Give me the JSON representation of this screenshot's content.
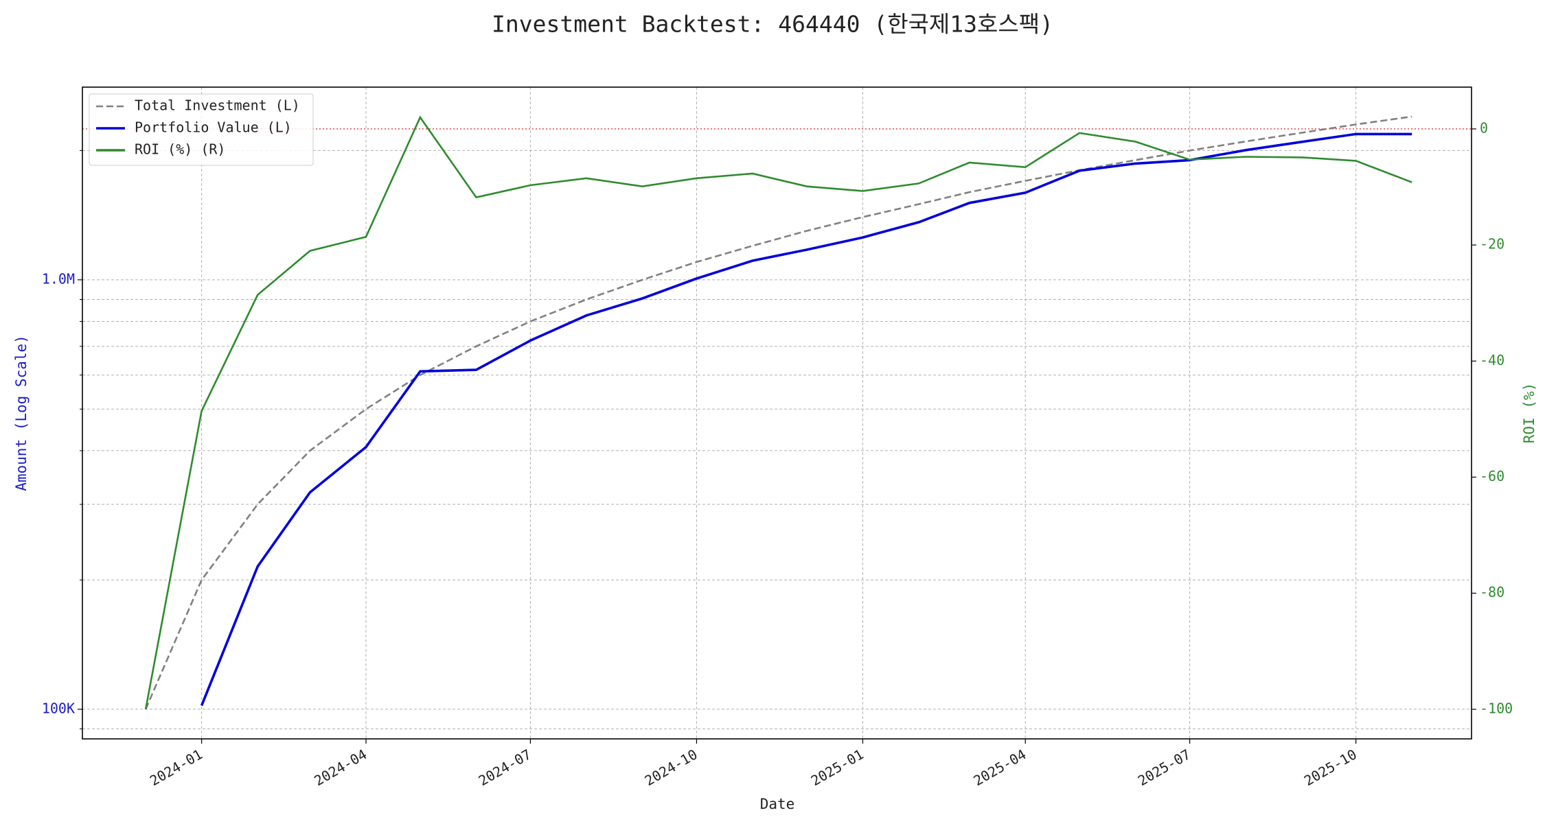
{
  "chart_data": {
    "type": "line",
    "title": "Investment Backtest: 464440 (한국제13호스팩)",
    "xlabel": "Date",
    "ylabel": "Amount (Log Scale)",
    "y2label": "ROI (%)",
    "x": [
      "2023-12",
      "2024-01",
      "2024-02",
      "2024-03",
      "2024-04",
      "2024-05",
      "2024-06",
      "2024-07",
      "2024-08",
      "2024-09",
      "2024-10",
      "2024-11",
      "2024-12",
      "2025-01",
      "2025-02",
      "2025-03",
      "2025-04",
      "2025-05",
      "2025-06",
      "2025-07",
      "2025-08",
      "2025-09",
      "2025-10",
      "2025-11"
    ],
    "xlim": [
      "2023-10-27",
      "2025-12-04"
    ],
    "xticks": [
      "2024-01",
      "2024-04",
      "2024-07",
      "2024-10",
      "2025-01",
      "2025-04",
      "2025-07",
      "2025-10"
    ],
    "yscale": "log",
    "ylim": [
      85300,
      2810000
    ],
    "yticks": [
      {
        "value": 100000,
        "label": "100K"
      },
      {
        "value": 1000000,
        "label": "1.0M"
      }
    ],
    "yminorticks": [
      90000,
      200000,
      300000,
      400000,
      500000,
      600000,
      700000,
      800000,
      900000,
      2000000
    ],
    "y2lim": [
      -105.1,
      7.2
    ],
    "y2ticks": [
      0,
      -20,
      -40,
      -60,
      -80,
      -100
    ],
    "grid": true,
    "legend": "upper left",
    "reference_line": {
      "axis": "y2",
      "value": 0,
      "color": "#d62728"
    },
    "series": [
      {
        "name": "Total Investment (L)",
        "color": "#808080",
        "dash": true,
        "values": [
          100000,
          200000,
          300000,
          400000,
          500000,
          600000,
          700000,
          800000,
          900000,
          1000000,
          1100000,
          1200000,
          1300000,
          1400000,
          1500000,
          1600000,
          1700000,
          1800000,
          1900000,
          2000000,
          2100000,
          2200000,
          2300000,
          2400000
        ]
      },
      {
        "name": "Portfolio Value (L)",
        "color": "#0000dd",
        "values": [
          null,
          102000,
          215000,
          320000,
          408000,
          612000,
          617000,
          722000,
          826000,
          905000,
          1007000,
          1108000,
          1175000,
          1255000,
          1362000,
          1510000,
          1595000,
          1795000,
          1865000,
          1900000,
          2005000,
          2095000,
          2185000,
          2185000
        ]
      },
      {
        "name": "ROI (%) (R)",
        "color": "#2e8b2e",
        "axis": "y2",
        "values": [
          -100,
          -48.6,
          -28.6,
          -21.0,
          -18.6,
          2.0,
          -11.8,
          -9.7,
          -8.5,
          -9.9,
          -8.5,
          -7.7,
          -9.9,
          -10.7,
          -9.4,
          -5.8,
          -6.6,
          -0.7,
          -2.2,
          -5.3,
          -4.8,
          -4.9,
          -5.5,
          -9.2
        ]
      }
    ]
  }
}
